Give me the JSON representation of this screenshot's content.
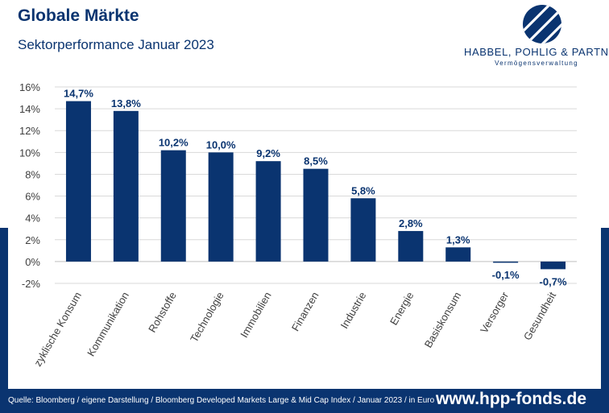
{
  "header": {
    "title": "Globale Märkte",
    "subtitle": "Sektorperformance Januar 2023"
  },
  "logo": {
    "icon": "hpp-logo-mark-icon",
    "name": "HABBEL, POHLIG & PARTNER",
    "tagline": "Vermögensverwaltung"
  },
  "chart_data": {
    "type": "bar",
    "title": "",
    "xlabel": "",
    "ylabel": "",
    "categories": [
      "zyklische Konsum",
      "Kommunikation",
      "Rohstoffe",
      "Technologie",
      "Immobilien",
      "Finanzen",
      "Industrie",
      "Energie",
      "Basiskonsum",
      "Versorger",
      "Gesundheit"
    ],
    "values": [
      14.7,
      13.8,
      10.2,
      10.0,
      9.2,
      8.5,
      5.8,
      2.8,
      1.3,
      -0.1,
      -0.7
    ],
    "value_labels": [
      "14,7%",
      "13,8%",
      "10,2%",
      "10,0%",
      "9,2%",
      "8,5%",
      "5,8%",
      "2,8%",
      "1,3%",
      "-0,1%",
      "-0,7%"
    ],
    "ylim": [
      -2,
      16
    ],
    "y_ticks": [
      16,
      14,
      12,
      10,
      8,
      6,
      4,
      2,
      0,
      -2
    ],
    "y_tick_labels": [
      "16%",
      "14%",
      "12%",
      "10%",
      "8%",
      "6%",
      "4%",
      "2%",
      "0%",
      "-2%"
    ],
    "grid": true,
    "legend": "none",
    "bar_color": "#0a3470"
  },
  "footer": {
    "source": "Quelle: Bloomberg / eigene Darstellung / Bloomberg Developed Markets Large & Mid Cap Index / Januar 2023 / in Euro",
    "website": "www.hpp-fonds.de"
  },
  "colors": {
    "brand": "#0a3470",
    "grid": "#d9d9d9",
    "axis_text": "#404040"
  }
}
